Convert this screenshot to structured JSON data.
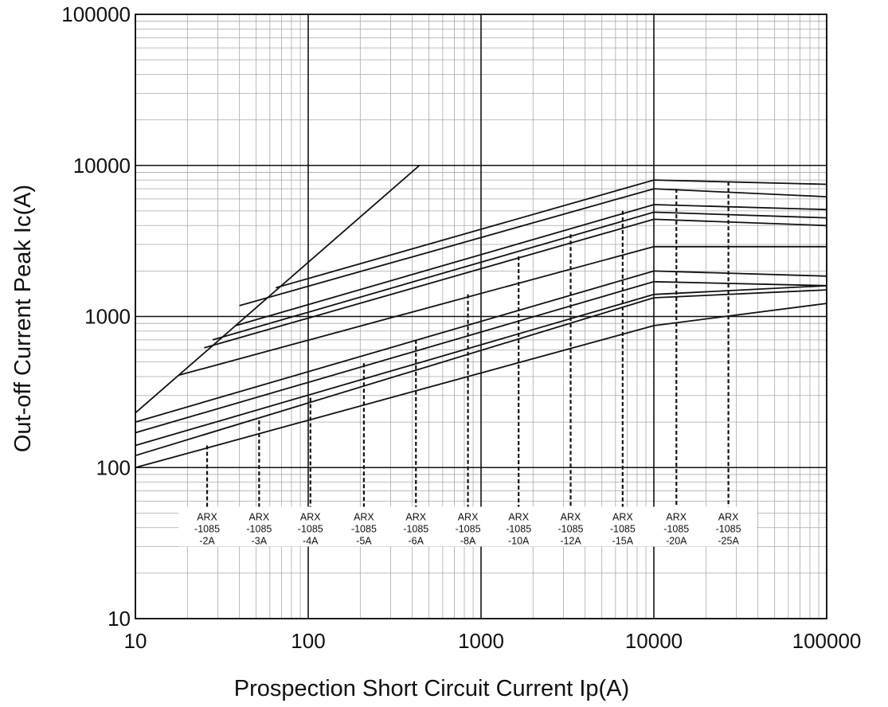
{
  "chart_data": {
    "type": "line",
    "xlabel": "Prospection Short Circuit Current Ip(A)",
    "ylabel": "Out-off Current Peak Ic(A)",
    "xscale": "log",
    "yscale": "log",
    "xlim": [
      10,
      100000
    ],
    "ylim": [
      10,
      100000
    ],
    "grid": true,
    "x_tick_labels": [
      "10",
      "100",
      "1000",
      "10000",
      "100000"
    ],
    "y_tick_labels": [
      "10",
      "100",
      "1000",
      "10000",
      "100000"
    ],
    "max_peak_line": {
      "points": [
        [
          10,
          230
        ],
        [
          440,
          10000
        ]
      ]
    },
    "series": [
      {
        "name": "ARX-1085-25A",
        "points": [
          [
            65,
            1550
          ],
          [
            10000,
            8000
          ],
          [
            100000,
            7500
          ]
        ]
      },
      {
        "name": "ARX-1085-20A",
        "points": [
          [
            40,
            1180
          ],
          [
            10000,
            7000
          ],
          [
            100000,
            6200
          ]
        ]
      },
      {
        "name": "ARX-1085-15A",
        "points": [
          [
            38,
            870
          ],
          [
            10000,
            5500
          ],
          [
            100000,
            5100
          ]
        ]
      },
      {
        "name": "ARX-1085-12A",
        "points": [
          [
            28,
            700
          ],
          [
            10000,
            4900
          ],
          [
            100000,
            4500
          ]
        ]
      },
      {
        "name": "ARX-1085-10A",
        "points": [
          [
            25,
            620
          ],
          [
            10000,
            4400
          ],
          [
            100000,
            4000
          ]
        ]
      },
      {
        "name": "ARX-1085-8A",
        "points": [
          [
            18,
            410
          ],
          [
            10000,
            2900
          ],
          [
            100000,
            2900
          ]
        ]
      },
      {
        "name": "ARX-1085-6A",
        "points": [
          [
            10,
            200
          ],
          [
            10000,
            2000
          ],
          [
            100000,
            1850
          ]
        ]
      },
      {
        "name": "ARX-1085-5A",
        "points": [
          [
            10,
            170
          ],
          [
            10000,
            1700
          ],
          [
            100000,
            1600
          ]
        ]
      },
      {
        "name": "ARX-1085-4A",
        "points": [
          [
            10,
            140
          ],
          [
            10000,
            1400
          ],
          [
            100000,
            1600
          ]
        ]
      },
      {
        "name": "ARX-1085-3A",
        "points": [
          [
            10,
            120
          ],
          [
            10000,
            1330
          ],
          [
            100000,
            1500
          ]
        ]
      },
      {
        "name": "ARX-1085-2A",
        "points": [
          [
            10,
            100
          ],
          [
            10000,
            870
          ],
          [
            100000,
            1220
          ]
        ]
      }
    ],
    "markers": [
      {
        "x": 26,
        "y_top": 140,
        "line": [
          "ARX",
          "-1085",
          "-2A"
        ]
      },
      {
        "x": 52,
        "y_top": 205,
        "line": [
          "ARX",
          "-1085",
          "-3A"
        ]
      },
      {
        "x": 103,
        "y_top": 290,
        "line": [
          "ARX",
          "-1085",
          "-4A"
        ]
      },
      {
        "x": 210,
        "y_top": 490,
        "line": [
          "ARX",
          "-1085",
          "-5A"
        ]
      },
      {
        "x": 420,
        "y_top": 700,
        "line": [
          "ARX",
          "-1085",
          "-6A"
        ]
      },
      {
        "x": 840,
        "y_top": 1400,
        "line": [
          "ARX",
          "-1085",
          "-8A"
        ]
      },
      {
        "x": 1650,
        "y_top": 2500,
        "line": [
          "ARX",
          "-1085",
          "-10A"
        ]
      },
      {
        "x": 3300,
        "y_top": 3500,
        "line": [
          "ARX",
          "-1085",
          "-12A"
        ]
      },
      {
        "x": 6600,
        "y_top": 5000,
        "line": [
          "ARX",
          "-1085",
          "-15A"
        ]
      },
      {
        "x": 13500,
        "y_top": 7000,
        "line": [
          "ARX",
          "-1085",
          "-20A"
        ]
      },
      {
        "x": 27000,
        "y_top": 7800,
        "line": [
          "ARX",
          "-1085",
          "-25A"
        ]
      }
    ],
    "marker_label_band": {
      "y_top": 55,
      "y_bottom": 30
    }
  }
}
